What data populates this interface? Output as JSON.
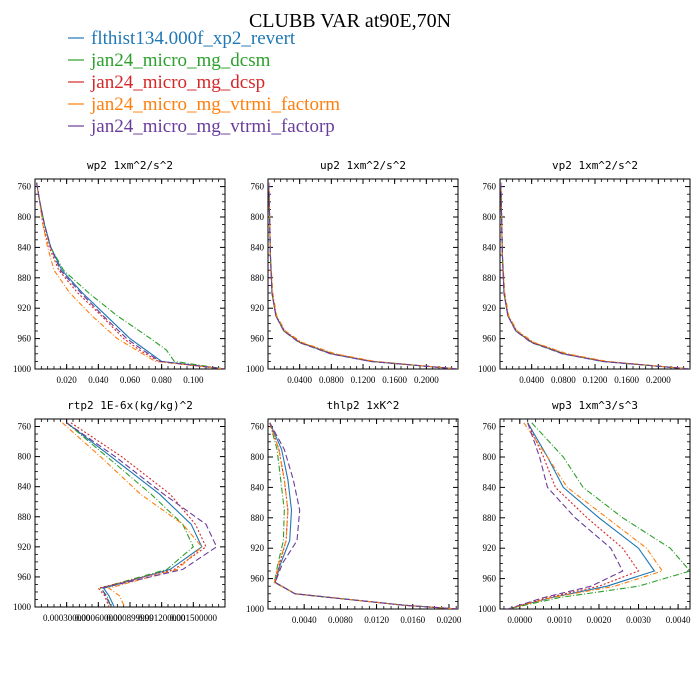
{
  "title": "CLUBB VAR at90E,70N",
  "legend": [
    {
      "label": "flthist134.000f_xp2_revert",
      "color": "#1f77b4",
      "dash": ""
    },
    {
      "label": "jan24_micro_mg_dcsm",
      "color": "#2ca02c",
      "dash": "6,2,1,2"
    },
    {
      "label": "jan24_micro_mg_dcsp",
      "color": "#d62728",
      "dash": "2,2"
    },
    {
      "label": "jan24_micro_mg_vtrmi_factorm",
      "color": "#ff7f0e",
      "dash": "5,2,1,2"
    },
    {
      "label": "jan24_micro_mg_vtrmi_factorp",
      "color": "#6a3d9a",
      "dash": "6,3"
    }
  ],
  "chart_data": [
    {
      "type": "line",
      "title": "wp2  1xm^2/s^2",
      "xlim": [
        0.0,
        0.12
      ],
      "ylim": [
        750,
        1000
      ],
      "xticks": [
        0.02,
        0.04,
        0.06,
        0.08,
        0.1
      ],
      "xtick_labels": [
        "0.020",
        "0.040",
        "0.060",
        "0.080",
        "0.100"
      ],
      "yticks": [
        760,
        800,
        840,
        880,
        920,
        960,
        1000
      ],
      "y": [
        755,
        780,
        810,
        840,
        870,
        900,
        930,
        960,
        975,
        990,
        1000
      ],
      "series": [
        {
          "name": "flthist134.000f_xp2_revert",
          "values": [
            0.001,
            0.003,
            0.006,
            0.01,
            0.017,
            0.03,
            0.045,
            0.06,
            0.07,
            0.08,
            0.12
          ]
        },
        {
          "name": "jan24_micro_mg_dcsm",
          "values": [
            0.001,
            0.003,
            0.006,
            0.01,
            0.018,
            0.034,
            0.052,
            0.073,
            0.083,
            0.088,
            0.12
          ]
        },
        {
          "name": "jan24_micro_mg_dcsp",
          "values": [
            0.001,
            0.003,
            0.005,
            0.009,
            0.015,
            0.027,
            0.042,
            0.056,
            0.066,
            0.078,
            0.12
          ]
        },
        {
          "name": "jan24_micro_mg_vtrmi_factorm",
          "values": [
            0.001,
            0.003,
            0.005,
            0.008,
            0.012,
            0.022,
            0.036,
            0.052,
            0.064,
            0.076,
            0.12
          ]
        },
        {
          "name": "jan24_micro_mg_vtrmi_factorp",
          "values": [
            0.001,
            0.003,
            0.006,
            0.01,
            0.016,
            0.029,
            0.043,
            0.058,
            0.068,
            0.079,
            0.12
          ]
        }
      ]
    },
    {
      "type": "line",
      "title": "up2  1xm^2/s^2",
      "xlim": [
        0.0,
        0.24
      ],
      "ylim": [
        750,
        1000
      ],
      "xticks": [
        0.04,
        0.08,
        0.12,
        0.16,
        0.2
      ],
      "xtick_labels": [
        "0.0400",
        "0.0800",
        "0.1200",
        "0.1600",
        "0.2000"
      ],
      "yticks": [
        760,
        800,
        840,
        880,
        920,
        960,
        1000
      ],
      "y": [
        755,
        800,
        850,
        900,
        930,
        950,
        965,
        980,
        990,
        1000
      ],
      "series": [
        {
          "name": "flthist134.000f_xp2_revert",
          "values": [
            0.001,
            0.002,
            0.003,
            0.005,
            0.01,
            0.02,
            0.04,
            0.08,
            0.13,
            0.24
          ]
        },
        {
          "name": "jan24_micro_mg_dcsm",
          "values": [
            0.001,
            0.002,
            0.003,
            0.005,
            0.01,
            0.02,
            0.04,
            0.082,
            0.132,
            0.24
          ]
        },
        {
          "name": "jan24_micro_mg_dcsp",
          "values": [
            0.001,
            0.002,
            0.003,
            0.005,
            0.01,
            0.021,
            0.041,
            0.081,
            0.131,
            0.24
          ]
        },
        {
          "name": "jan24_micro_mg_vtrmi_factorm",
          "values": [
            0.001,
            0.002,
            0.003,
            0.006,
            0.011,
            0.022,
            0.043,
            0.085,
            0.135,
            0.24
          ]
        },
        {
          "name": "jan24_micro_mg_vtrmi_factorp",
          "values": [
            0.001,
            0.002,
            0.003,
            0.005,
            0.01,
            0.02,
            0.039,
            0.079,
            0.129,
            0.24
          ]
        }
      ]
    },
    {
      "type": "line",
      "title": "vp2  1xm^2/s^2",
      "xlim": [
        0.0,
        0.24
      ],
      "ylim": [
        750,
        1000
      ],
      "xticks": [
        0.04,
        0.08,
        0.12,
        0.16,
        0.2
      ],
      "xtick_labels": [
        "0.0400",
        "0.0800",
        "0.1200",
        "0.1600",
        "0.2000"
      ],
      "yticks": [
        760,
        800,
        840,
        880,
        920,
        960,
        1000
      ],
      "y": [
        755,
        800,
        850,
        900,
        930,
        950,
        965,
        980,
        990,
        1000
      ],
      "series": [
        {
          "name": "flthist134.000f_xp2_revert",
          "values": [
            0.001,
            0.002,
            0.003,
            0.005,
            0.01,
            0.02,
            0.04,
            0.08,
            0.13,
            0.24
          ]
        },
        {
          "name": "jan24_micro_mg_dcsm",
          "values": [
            0.001,
            0.002,
            0.003,
            0.005,
            0.01,
            0.02,
            0.041,
            0.081,
            0.131,
            0.24
          ]
        },
        {
          "name": "jan24_micro_mg_dcsp",
          "values": [
            0.001,
            0.002,
            0.003,
            0.005,
            0.01,
            0.021,
            0.041,
            0.082,
            0.132,
            0.24
          ]
        },
        {
          "name": "jan24_micro_mg_vtrmi_factorm",
          "values": [
            0.001,
            0.002,
            0.003,
            0.006,
            0.011,
            0.022,
            0.043,
            0.085,
            0.135,
            0.24
          ]
        },
        {
          "name": "jan24_micro_mg_vtrmi_factorp",
          "values": [
            0.001,
            0.002,
            0.003,
            0.005,
            0.01,
            0.02,
            0.039,
            0.079,
            0.129,
            0.24
          ]
        }
      ]
    },
    {
      "type": "line",
      "title": "rtp2  1E-6x(kg/kg)^2",
      "xlim": [
        0.0,
        0.0018
      ],
      "ylim": [
        750,
        1000
      ],
      "xticks": [
        0.0003,
        0.0006,
        0.0009,
        0.0012,
        0.0015
      ],
      "xtick_labels": [
        "0.000300000",
        "0.000600000",
        "0.000899999",
        "0.001200000",
        "0.001500000"
      ],
      "yticks": [
        760,
        800,
        840,
        880,
        920,
        960,
        1000
      ],
      "y": [
        755,
        800,
        850,
        890,
        920,
        950,
        975,
        985,
        1000
      ],
      "series": [
        {
          "name": "flthist134.000f_xp2_revert",
          "values": [
            0.0003,
            0.00072,
            0.00118,
            0.00148,
            0.00158,
            0.00128,
            0.00065,
            0.0007,
            0.00075
          ]
        },
        {
          "name": "jan24_micro_mg_dcsm",
          "values": [
            0.0003,
            0.00068,
            0.0011,
            0.0014,
            0.0015,
            0.00125,
            0.00062,
            0.00068,
            0.00072
          ]
        },
        {
          "name": "jan24_micro_mg_dcsp",
          "values": [
            0.00034,
            0.00082,
            0.00128,
            0.00152,
            0.00162,
            0.00132,
            0.0006,
            0.00066,
            0.0007
          ]
        },
        {
          "name": "jan24_micro_mg_vtrmi_factorm",
          "values": [
            0.00026,
            0.00062,
            0.001,
            0.0014,
            0.00158,
            0.00135,
            0.0007,
            0.0008,
            0.00085
          ]
        },
        {
          "name": "jan24_micro_mg_vtrmi_factorp",
          "values": [
            0.0003,
            0.00076,
            0.00122,
            0.00162,
            0.00172,
            0.0014,
            0.00063,
            0.00067,
            0.00072
          ]
        }
      ]
    },
    {
      "type": "line",
      "title": "thlp2  1xK^2",
      "xlim": [
        0.0,
        0.021
      ],
      "ylim": [
        750,
        1000
      ],
      "xticks": [
        0.004,
        0.008,
        0.012,
        0.016,
        0.02
      ],
      "xtick_labels": [
        "0.0040",
        "0.0080",
        "0.0120",
        "0.0160",
        "0.0200"
      ],
      "yticks": [
        760,
        800,
        840,
        880,
        920,
        960,
        1000
      ],
      "y": [
        755,
        790,
        830,
        870,
        910,
        940,
        965,
        980,
        995,
        1000
      ],
      "series": [
        {
          "name": "flthist134.000f_xp2_revert",
          "values": [
            0.0002,
            0.0015,
            0.0022,
            0.0026,
            0.0024,
            0.0014,
            0.0008,
            0.003,
            0.015,
            0.021
          ]
        },
        {
          "name": "jan24_micro_mg_dcsm",
          "values": [
            0.0002,
            0.001,
            0.0014,
            0.0018,
            0.0017,
            0.0011,
            0.0007,
            0.003,
            0.015,
            0.021
          ]
        },
        {
          "name": "jan24_micro_mg_dcsp",
          "values": [
            0.0002,
            0.0012,
            0.0018,
            0.0022,
            0.002,
            0.0013,
            0.0008,
            0.003,
            0.015,
            0.021
          ]
        },
        {
          "name": "jan24_micro_mg_vtrmi_factorm",
          "values": [
            0.0002,
            0.0012,
            0.0018,
            0.0022,
            0.002,
            0.0012,
            0.0007,
            0.003,
            0.015,
            0.021
          ]
        },
        {
          "name": "jan24_micro_mg_vtrmi_factorp",
          "values": [
            0.0002,
            0.0018,
            0.0028,
            0.0035,
            0.0032,
            0.0016,
            0.0008,
            0.003,
            0.015,
            0.021
          ]
        }
      ]
    },
    {
      "type": "line",
      "title": "wp3  1xm^3/s^3",
      "xlim": [
        -0.0005,
        0.0043
      ],
      "ylim": [
        750,
        1000
      ],
      "xticks": [
        0.0,
        0.001,
        0.002,
        0.003,
        0.004
      ],
      "xtick_labels": [
        "0.0000",
        "0.0010",
        "0.0020",
        "0.0030",
        "0.0040"
      ],
      "yticks": [
        760,
        800,
        840,
        880,
        920,
        960,
        1000
      ],
      "y": [
        755,
        800,
        840,
        880,
        920,
        950,
        970,
        985,
        1000
      ],
      "series": [
        {
          "name": "flthist134.000f_xp2_revert",
          "values": [
            0.0002,
            0.0007,
            0.0011,
            0.002,
            0.003,
            0.0034,
            0.0022,
            0.0008,
            -0.0003
          ]
        },
        {
          "name": "jan24_micro_mg_dcsm",
          "values": [
            0.0003,
            0.0011,
            0.0016,
            0.0026,
            0.0038,
            0.0043,
            0.003,
            0.001,
            -0.0003
          ]
        },
        {
          "name": "jan24_micro_mg_dcsp",
          "values": [
            0.0002,
            0.0006,
            0.0009,
            0.0017,
            0.0026,
            0.003,
            0.002,
            0.0007,
            -0.0003
          ]
        },
        {
          "name": "jan24_micro_mg_vtrmi_factorm",
          "values": [
            0.0001,
            0.0007,
            0.0012,
            0.0022,
            0.0032,
            0.0036,
            0.0024,
            0.0008,
            -0.0003
          ]
        },
        {
          "name": "jan24_micro_mg_vtrmi_factorp",
          "values": [
            0.0002,
            0.0005,
            0.0007,
            0.0014,
            0.0023,
            0.0026,
            0.0018,
            0.0006,
            -0.0003
          ]
        }
      ]
    }
  ]
}
